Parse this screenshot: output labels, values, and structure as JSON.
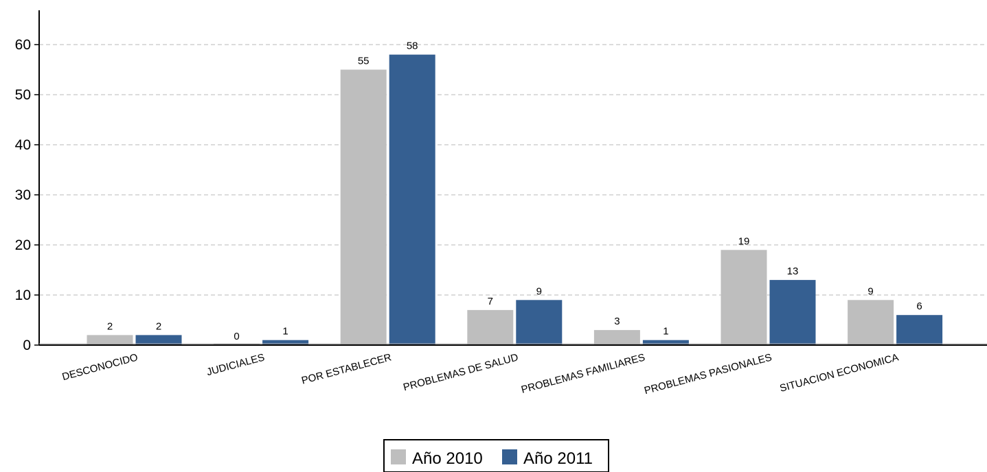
{
  "chart_data": {
    "type": "bar",
    "categories": [
      "DESCONOCIDO",
      "JUDICIALES",
      "POR ESTABLECER",
      "PROBLEMAS DE SALUD",
      "PROBLEMAS FAMILIARES",
      "PROBLEMAS PASIONALES",
      "SITUACION ECONOMICA"
    ],
    "series": [
      {
        "name": "Año 2010",
        "color": "#bebebe",
        "values": [
          2,
          0,
          55,
          7,
          3,
          19,
          9
        ]
      },
      {
        "name": "Año 2011",
        "color": "#355f91",
        "values": [
          2,
          1,
          58,
          9,
          1,
          13,
          6
        ]
      }
    ],
    "yticks": [
      0,
      10,
      20,
      30,
      40,
      50,
      60
    ],
    "ylim": [
      0,
      65
    ],
    "grid": true,
    "legend_position": "bottom-center",
    "title": "",
    "xlabel": "",
    "ylabel": ""
  }
}
